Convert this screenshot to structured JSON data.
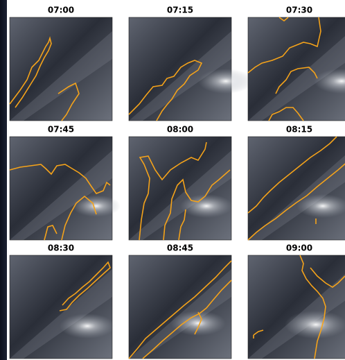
{
  "panels": [
    {
      "title": "07:00"
    },
    {
      "title": "07:15"
    },
    {
      "title": "07:30"
    },
    {
      "title": "07:45"
    },
    {
      "title": "08:00"
    },
    {
      "title": "08:15"
    },
    {
      "title": "08:30"
    },
    {
      "title": "08:45"
    },
    {
      "title": "09:00"
    }
  ]
}
